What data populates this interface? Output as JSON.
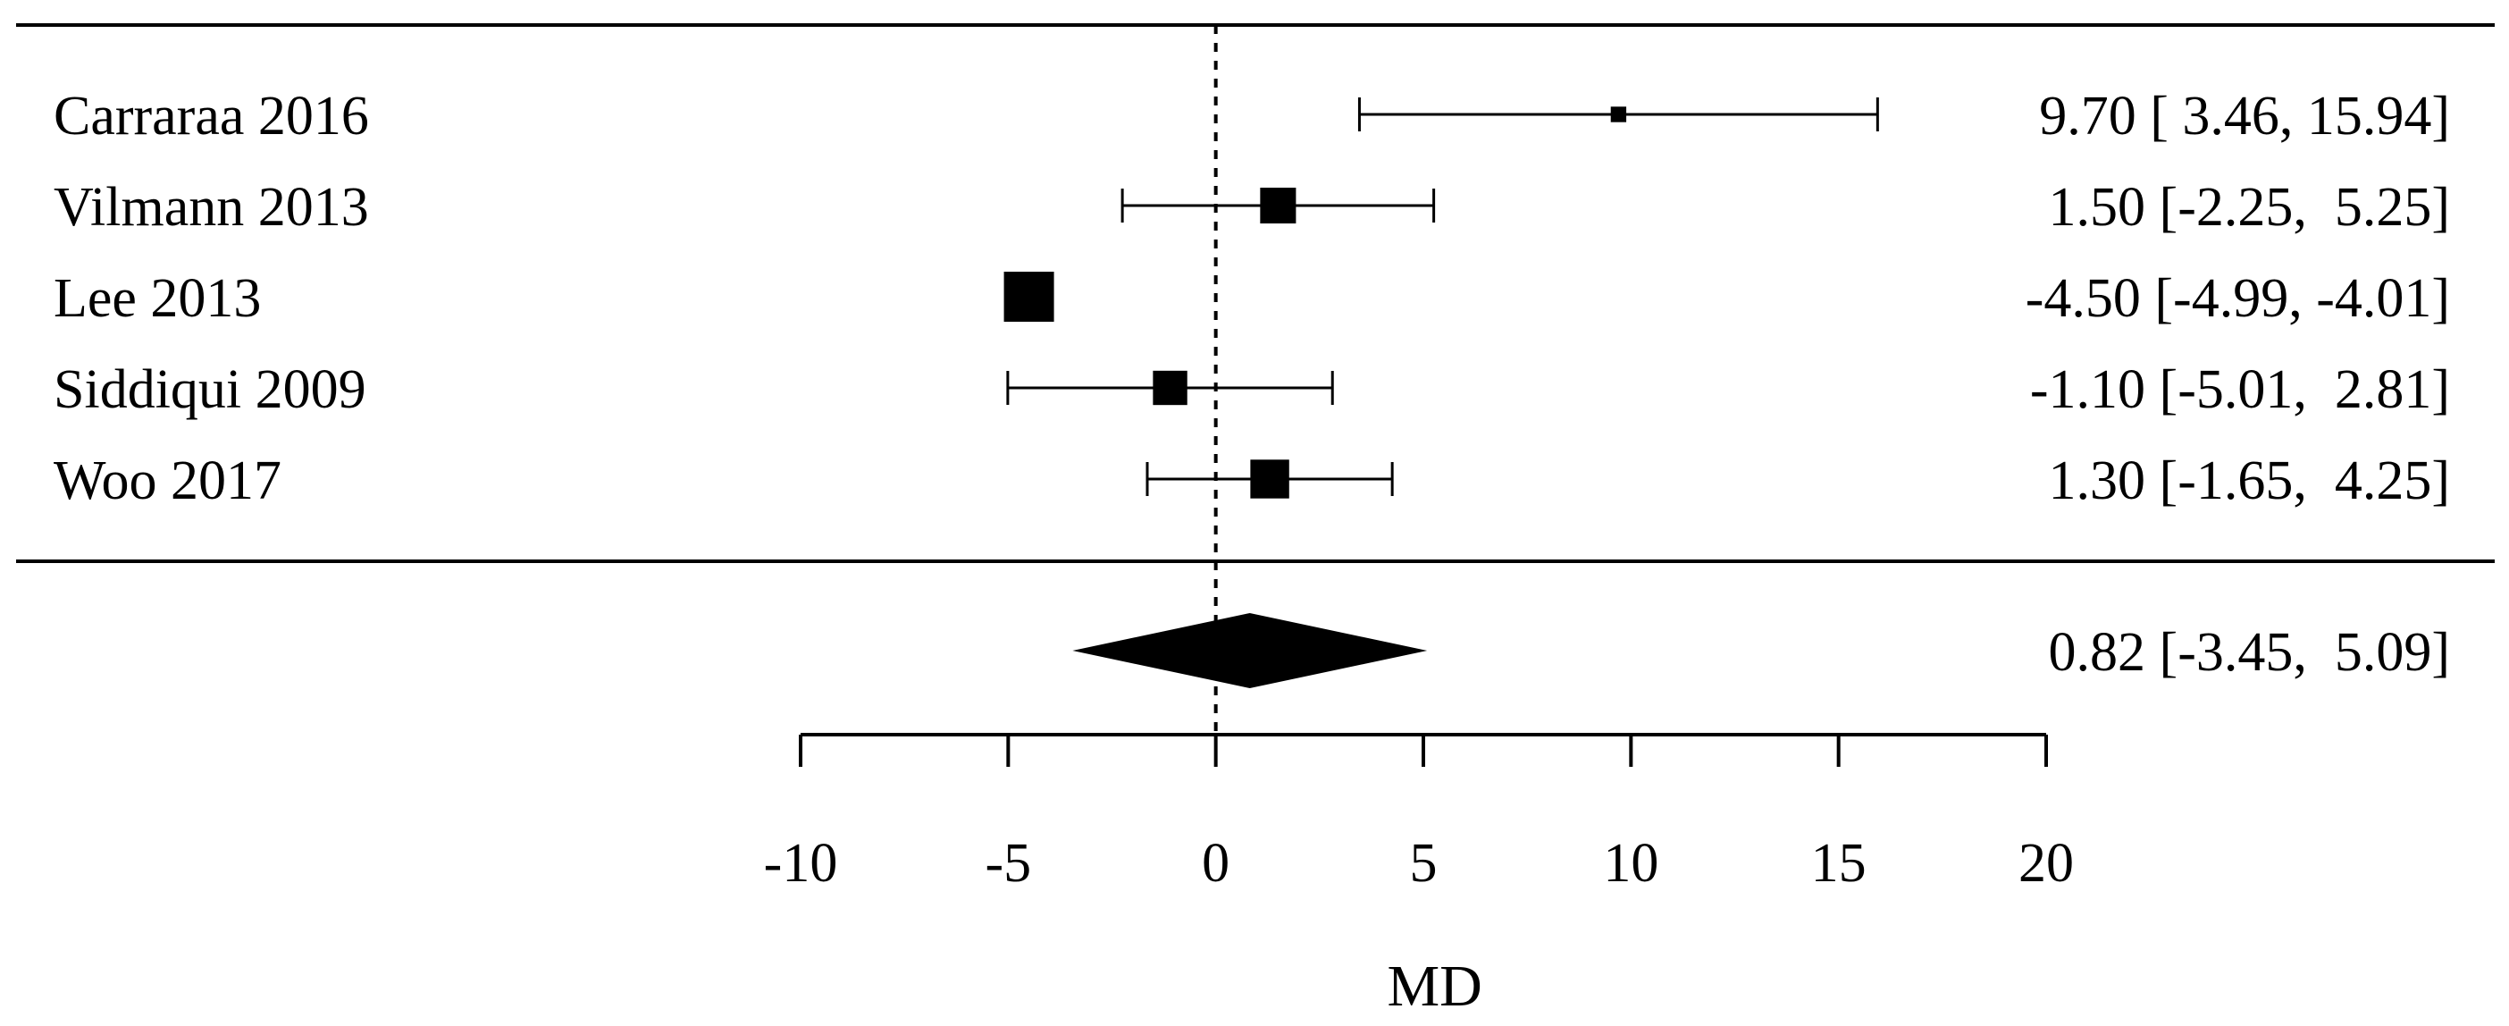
{
  "chart_data": {
    "type": "forest",
    "xlabel": "MD",
    "xlim": [
      -10,
      20
    ],
    "x_ticks": [
      -10,
      -5,
      0,
      5,
      10,
      15,
      20
    ],
    "x_tick_labels": [
      "-10",
      "-5",
      "0",
      "5",
      "10",
      "15",
      "20"
    ],
    "reference_line": 0,
    "studies": [
      {
        "label": "Carraraa 2016",
        "md": 9.7,
        "lower": 3.46,
        "upper": 15.94,
        "ci_text": "9.70 [ 3.46, 15.94]",
        "weight": 0.08
      },
      {
        "label": "Vilmann 2013",
        "md": 1.5,
        "lower": -2.25,
        "upper": 5.25,
        "ci_text": "1.50 [-2.25,  5.25]",
        "weight": 0.62
      },
      {
        "label": "Lee 2013",
        "md": -4.5,
        "lower": -4.99,
        "upper": -4.01,
        "ci_text": "-4.50 [-4.99, -4.01]",
        "weight": 1.0
      },
      {
        "label": "Siddiqui 2009",
        "md": -1.1,
        "lower": -5.01,
        "upper": 2.81,
        "ci_text": "-1.10 [-5.01,  2.81]",
        "weight": 0.58
      },
      {
        "label": "Woo 2017",
        "md": 1.3,
        "lower": -1.65,
        "upper": 4.25,
        "ci_text": "1.30 [-1.65,  4.25]",
        "weight": 0.7
      }
    ],
    "summary": {
      "md": 0.82,
      "lower": -3.45,
      "upper": 5.09,
      "ci_text": "0.82 [-3.45,  5.09]"
    }
  }
}
